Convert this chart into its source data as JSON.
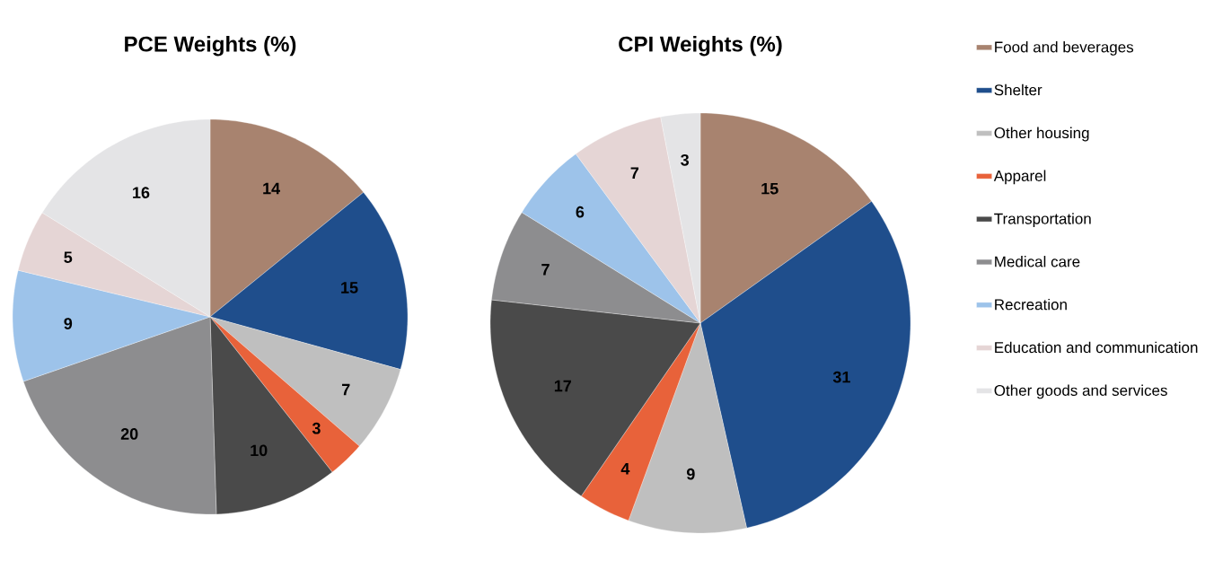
{
  "chart_data": [
    {
      "type": "pie",
      "title": "PCE Weights (%)",
      "data_labels": true,
      "categories": [
        null,
        null,
        null,
        null,
        null,
        null,
        null,
        null,
        null
      ],
      "values": [
        14,
        15,
        7,
        3,
        10,
        20,
        9,
        5,
        16
      ],
      "colors": [
        "#a8836f",
        "#1f4e8c",
        "#bfbfbf",
        "#e8623a",
        "#4a4a4a",
        "#8d8d8f",
        "#9dc3ea",
        "#e5d5d5",
        "#e4e4e6"
      ]
    },
    {
      "type": "pie",
      "title": "CPI Weights (%)",
      "data_labels": true,
      "legend": "right",
      "categories": [
        "Food and beverages",
        "Shelter",
        "Other housing",
        "Apparel",
        "Transportation",
        "Medical care",
        "Recreation",
        "Education and communication",
        "Other goods and services"
      ],
      "values": [
        15,
        31,
        9,
        4,
        17,
        7,
        6,
        7,
        3
      ],
      "colors": [
        "#a8836f",
        "#1f4e8c",
        "#bfbfbf",
        "#e8623a",
        "#4a4a4a",
        "#8d8d8f",
        "#9dc3ea",
        "#e5d5d5",
        "#e4e4e6"
      ]
    }
  ]
}
